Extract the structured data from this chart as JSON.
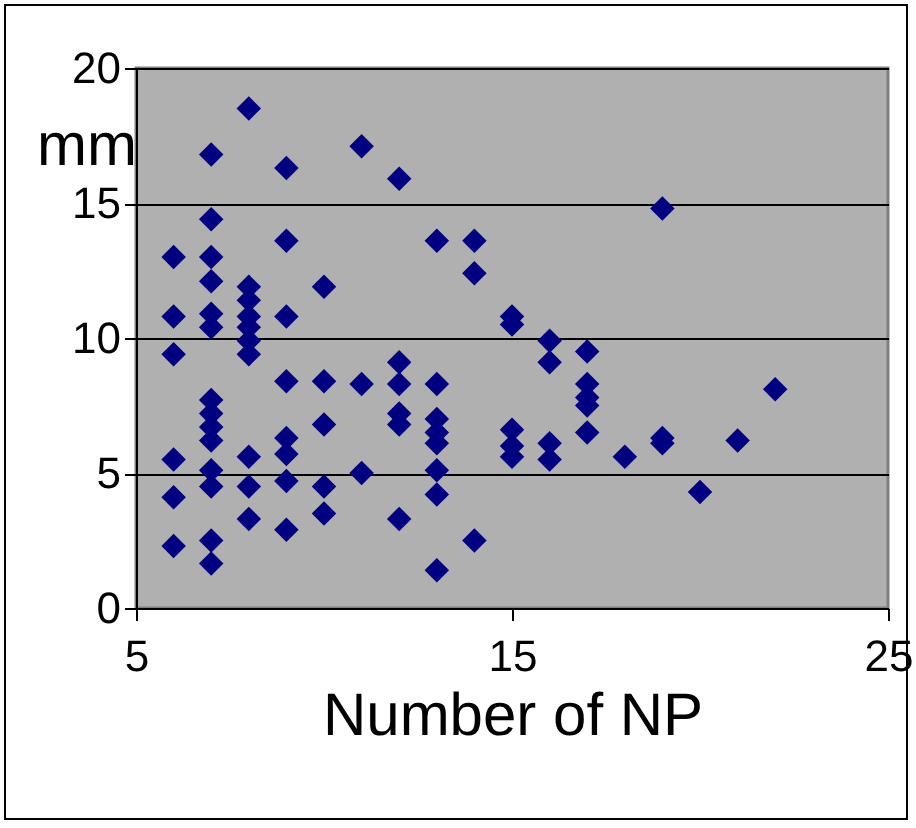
{
  "chart_data": {
    "type": "scatter",
    "xlabel": "Number of NP",
    "ylabel": "mm",
    "xlim": [
      5,
      25
    ],
    "xticks": [
      5,
      15,
      25
    ],
    "ylim": [
      0,
      20
    ],
    "yticks": [
      0,
      5,
      10,
      15,
      20
    ],
    "grid": "y",
    "marker": "diamond",
    "series": [
      {
        "color": "#000080",
        "x": [
          6,
          6,
          6,
          6,
          6,
          6,
          7,
          7,
          7,
          7,
          7,
          7,
          7,
          7,
          7,
          7,
          7,
          7,
          7,
          7,
          8,
          8,
          8,
          8,
          8,
          8,
          8,
          8,
          8,
          8,
          9,
          9,
          9,
          9,
          9,
          9,
          9,
          9,
          10,
          10,
          10,
          10,
          10,
          11,
          11,
          11,
          12,
          12,
          12,
          12,
          12,
          12,
          13,
          13,
          13,
          13,
          13,
          13,
          13,
          13,
          14,
          14,
          14,
          15,
          15,
          15,
          15,
          15,
          16,
          16,
          16,
          16,
          17,
          17,
          17,
          17,
          17,
          18,
          19,
          19,
          19,
          20,
          21,
          22
        ],
        "values": [
          13.0,
          10.8,
          9.4,
          5.5,
          4.1,
          2.3,
          16.8,
          14.4,
          13.0,
          12.1,
          10.9,
          10.4,
          7.7,
          7.2,
          6.7,
          6.2,
          5.1,
          4.5,
          2.5,
          1.65,
          18.5,
          11.9,
          11.4,
          10.8,
          10.4,
          9.9,
          9.4,
          5.6,
          4.5,
          3.3,
          16.3,
          13.6,
          10.8,
          8.4,
          6.3,
          5.7,
          4.7,
          2.9,
          11.9,
          8.4,
          6.8,
          4.5,
          3.5,
          17.1,
          8.3,
          5.0,
          15.9,
          9.1,
          8.3,
          7.2,
          6.8,
          3.3,
          13.6,
          8.3,
          7.0,
          6.5,
          6.1,
          5.1,
          4.2,
          1.4,
          13.6,
          12.4,
          2.5,
          10.8,
          10.5,
          6.6,
          6.0,
          5.6,
          9.9,
          9.1,
          6.1,
          5.5,
          9.5,
          8.3,
          7.8,
          7.5,
          6.5,
          5.6,
          14.8,
          6.3,
          6.1,
          4.3,
          6.2,
          8.1
        ]
      }
    ]
  }
}
